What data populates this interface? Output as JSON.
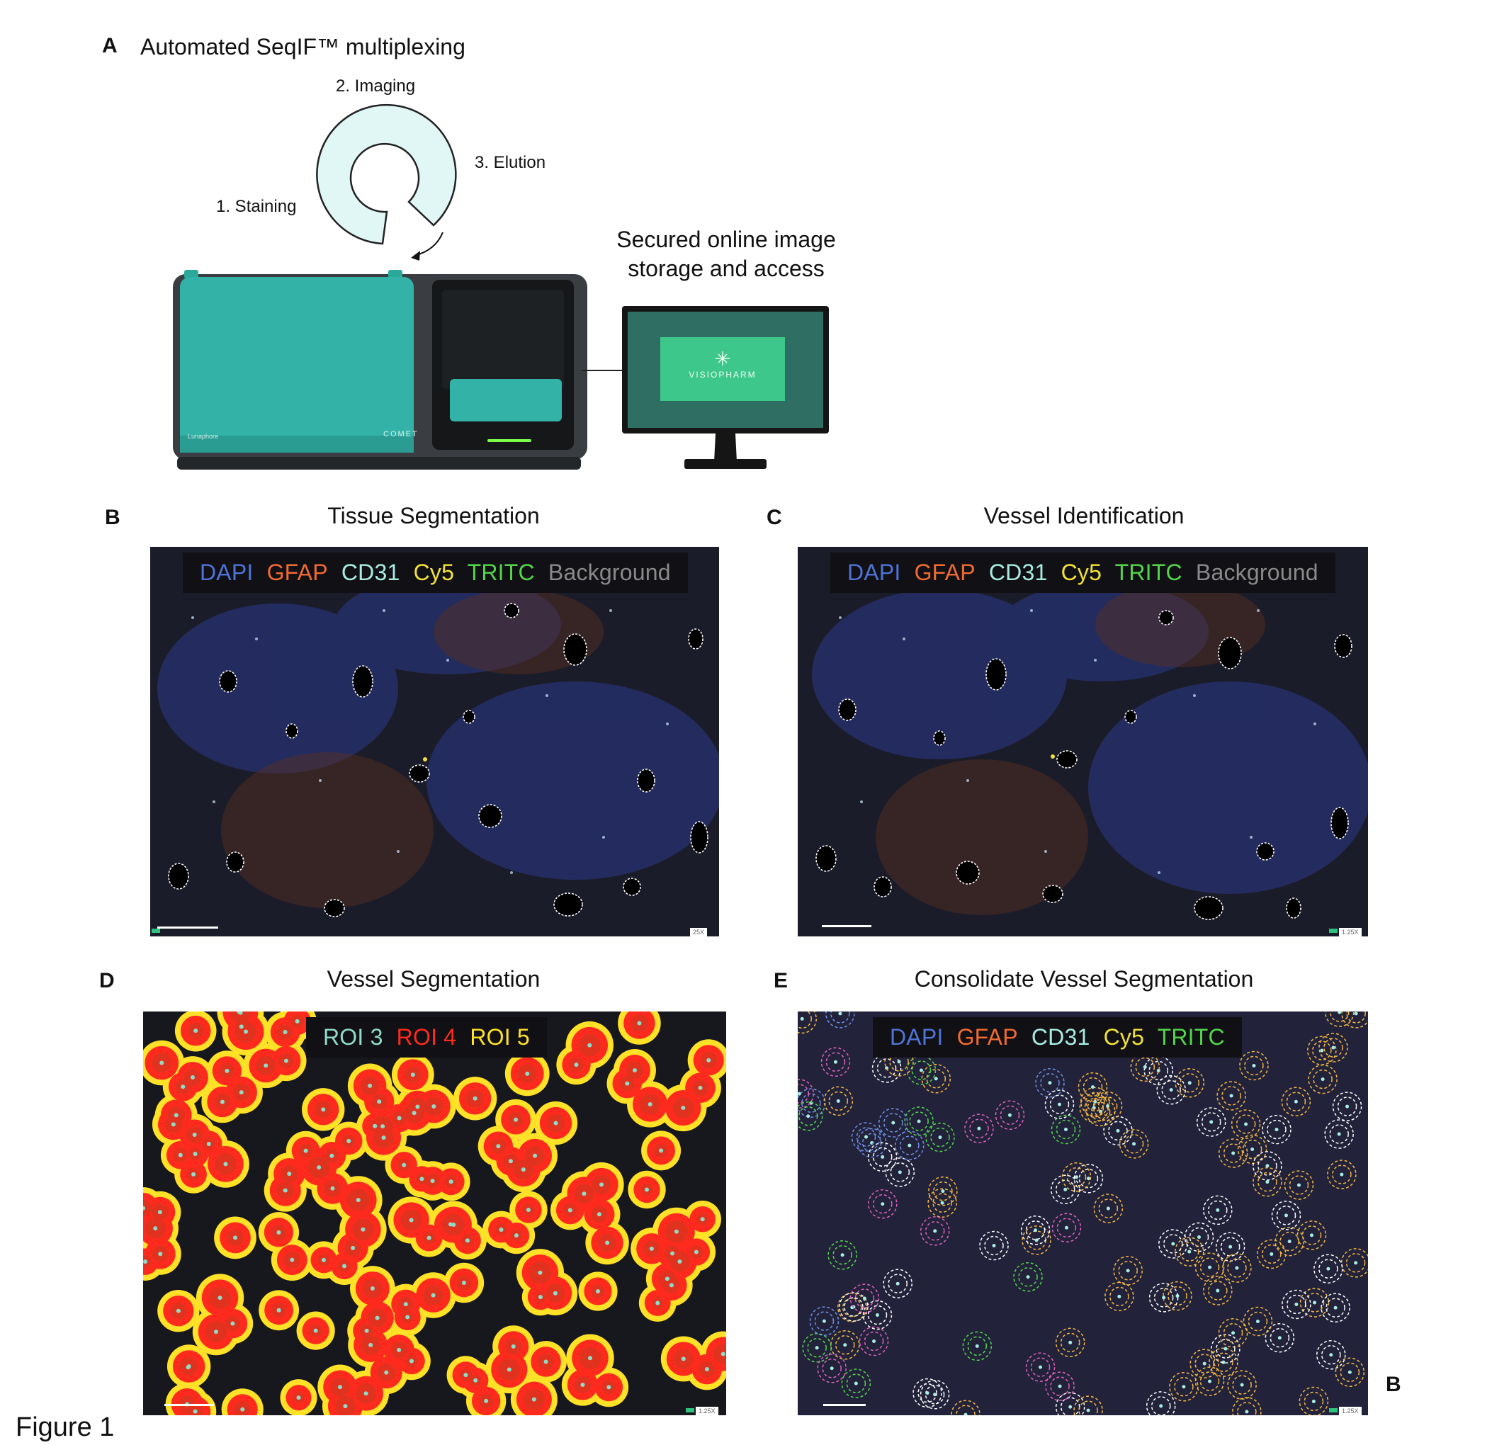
{
  "panels": {
    "a": {
      "letter": "A",
      "title": "Automated SeqIF™ multiplexing"
    },
    "b": {
      "letter": "B",
      "title": "Tissue Segmentation"
    },
    "c": {
      "letter": "C",
      "title": "Vessel Identification"
    },
    "d": {
      "letter": "D",
      "title": "Vessel Segmentation"
    },
    "e": {
      "letter": "E",
      "title": "Consolidate Vessel Segmentation"
    }
  },
  "cycle_steps": [
    "1. Staining",
    "2. Imaging",
    "3. Elution"
  ],
  "storage_text": [
    "Secured online image",
    "storage and access"
  ],
  "instrument": {
    "brand": "Lunaphore",
    "model": "COMET"
  },
  "monitor": {
    "software": "VISIOPHARM"
  },
  "legends": {
    "channels_full": [
      {
        "label": "DAPI",
        "color": "#4f73d6"
      },
      {
        "label": "GFAP",
        "color": "#f06a32"
      },
      {
        "label": "CD31",
        "color": "#a8ece4"
      },
      {
        "label": "Cy5",
        "color": "#f2e23a"
      },
      {
        "label": "TRITC",
        "color": "#52d64a"
      },
      {
        "label": "Background",
        "color": "#8a8a8a"
      }
    ],
    "rois": [
      {
        "label": "ROI 3",
        "color": "#8fdcc8"
      },
      {
        "label": "ROI 4",
        "color": "#ff2a1e"
      },
      {
        "label": "ROI 5",
        "color": "#ffe227"
      }
    ],
    "channels_e": [
      {
        "label": "DAPI",
        "color": "#4f73d6"
      },
      {
        "label": "GFAP",
        "color": "#f06a32"
      },
      {
        "label": "CD31",
        "color": "#a8ece4"
      },
      {
        "label": "Cy5",
        "color": "#f2e23a"
      },
      {
        "label": "TRITC",
        "color": "#52d64a"
      }
    ]
  },
  "scale_labels": {
    "b": "25X",
    "c": "1.25X",
    "d": "1.25X",
    "e": "1.25X"
  },
  "side_letter": "B",
  "figure_label": "Figure 1"
}
